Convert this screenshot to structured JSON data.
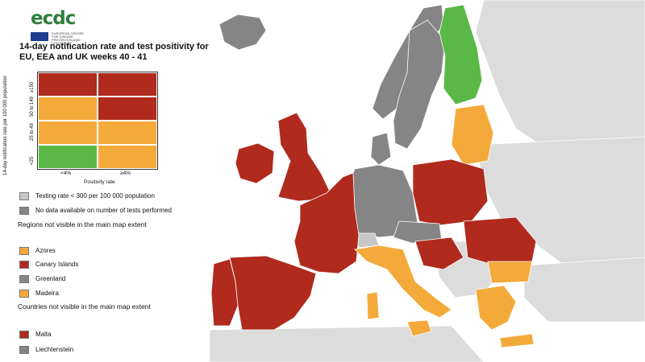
{
  "logo": {
    "text": "ecdc",
    "subtext": "EUROPEAN CENTRE FOR DISEASE PREVENTION AND CONTROL"
  },
  "title": "14-day notification rate and test positivity for EU, EEA and UK weeks 40 - 41",
  "matrix": {
    "y_axis_label": "14-day notification rate per 100 000 population",
    "x_axis_label": "Positivity rate",
    "rows": [
      "≥150",
      "50 to 149",
      "25 to 49",
      "<25"
    ],
    "columns": [
      "<4%",
      "≥4%"
    ],
    "cells": [
      [
        "dark-red",
        "dark-red"
      ],
      [
        "orange",
        "dark-red"
      ],
      [
        "orange",
        "orange"
      ],
      [
        "green",
        "orange"
      ]
    ]
  },
  "colors": {
    "dark-red": "#b02a1e",
    "orange": "#f4aa3a",
    "green": "#5ab946",
    "light-grey": "#c8c8c8",
    "dark-grey": "#858585",
    "non-eu": "#dcdcdc",
    "sea": "#ffffff",
    "border": "#ffffff"
  },
  "legend": {
    "grey_items": [
      {
        "label": "Testing rate < 300 per 100 000 population",
        "color": "light-grey"
      },
      {
        "label": "No data available on number of tests performed",
        "color": "dark-grey"
      }
    ],
    "regions_heading": "Regions not visible in the main map extent",
    "regions": [
      {
        "label": "Azores",
        "color": "orange"
      },
      {
        "label": "Canary Islands",
        "color": "dark-red"
      },
      {
        "label": "Greenland",
        "color": "dark-grey"
      },
      {
        "label": "Madeira",
        "color": "orange"
      }
    ],
    "countries_heading": "Countries not visible in the main map extent",
    "countries": [
      {
        "label": "Malta",
        "color": "dark-red"
      },
      {
        "label": "Liechtenstein",
        "color": "dark-grey"
      }
    ]
  },
  "map_regions": [
    {
      "name": "iceland",
      "status": "dark-grey"
    },
    {
      "name": "norway",
      "status": "dark-grey"
    },
    {
      "name": "sweden",
      "status": "dark-grey"
    },
    {
      "name": "finland",
      "status": "green"
    },
    {
      "name": "ireland",
      "status": "dark-red"
    },
    {
      "name": "united-kingdom",
      "status": "dark-red"
    },
    {
      "name": "france",
      "status": "dark-red"
    },
    {
      "name": "spain",
      "status": "dark-red"
    },
    {
      "name": "portugal",
      "status": "dark-red"
    },
    {
      "name": "germany",
      "status": "dark-grey"
    },
    {
      "name": "poland",
      "status": "dark-red"
    },
    {
      "name": "baltics",
      "status": "orange"
    },
    {
      "name": "italy",
      "status": "orange"
    },
    {
      "name": "greece",
      "status": "orange"
    },
    {
      "name": "romania",
      "status": "dark-red"
    },
    {
      "name": "bulgaria",
      "status": "orange"
    },
    {
      "name": "denmark",
      "status": "dark-grey"
    },
    {
      "name": "austria",
      "status": "dark-grey"
    },
    {
      "name": "switzerland",
      "status": "light-grey"
    }
  ]
}
